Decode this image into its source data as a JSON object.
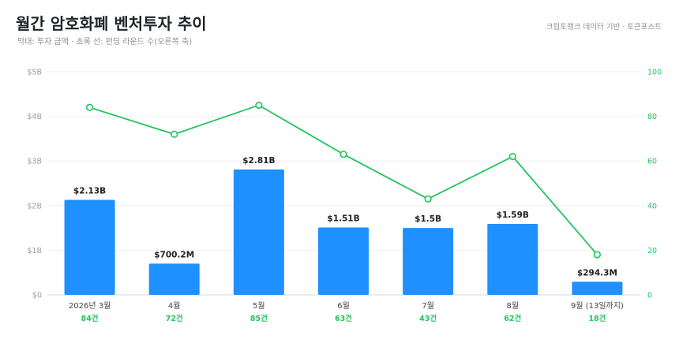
{
  "header": {
    "title": "월간 암호화폐 벤처투자 추이",
    "subtitle": "막대: 투자 금액 · 초록 선: 펀딩 라운드 수(오른쪽 축)",
    "source": "크립토랭크 데이터 기반 · 토큰포스트"
  },
  "chart_data": {
    "type": "bar",
    "categories": [
      "2026년 3월",
      "4월",
      "5월",
      "6월",
      "7월",
      "8월",
      "9월 (13일까지)"
    ],
    "series": [
      {
        "kind": "bar",
        "axis": "left",
        "values": [
          2.13,
          0.7002,
          2.81,
          1.51,
          1.5,
          1.59,
          0.2943
        ],
        "labels": [
          "$2.13B",
          "$700.2M",
          "$2.81B",
          "$1.51B",
          "$1.5B",
          "$1.59B",
          "$294.3M"
        ],
        "color": "#1e90ff"
      },
      {
        "kind": "line",
        "axis": "right",
        "values": [
          84,
          72,
          85,
          63,
          43,
          62,
          18
        ],
        "labels": [
          "84건",
          "72건",
          "85건",
          "63건",
          "43건",
          "62건",
          "18건"
        ],
        "color": "#22c55e"
      }
    ],
    "y_left": {
      "range": [
        0,
        5
      ],
      "ticks": [
        0,
        1,
        2,
        3,
        4,
        5
      ],
      "tick_labels": [
        "$0",
        "$1B",
        "$2B",
        "$3B",
        "$4B",
        "$5B"
      ]
    },
    "y_right": {
      "range": [
        0,
        100
      ],
      "ticks": [
        0,
        20,
        40,
        60,
        80,
        100
      ],
      "tick_labels": [
        "0",
        "20",
        "40",
        "60",
        "80",
        "100"
      ]
    },
    "grid": true
  }
}
